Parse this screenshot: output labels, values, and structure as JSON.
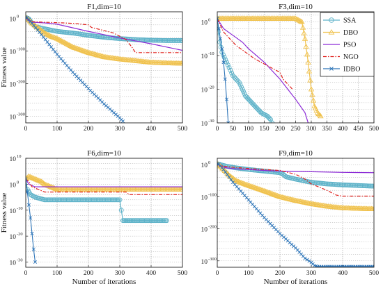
{
  "legend": {
    "items": [
      "SSA",
      "DBO",
      "PSO",
      "NGO",
      "IDBO"
    ]
  },
  "colors": {
    "SSA": "#5fb3c9",
    "DBO": "#f0c24e",
    "PSO": "#8c2ad6",
    "NGO": "#e0201c",
    "IDBO": "#2e75b8"
  },
  "chart_data": [
    {
      "type": "line",
      "title": "F1,dim=10",
      "ylabel": "Fitness value",
      "xlabel": "",
      "x_ticks": [
        "0",
        "100",
        "200",
        "300",
        "400",
        "500"
      ],
      "xlim": [
        0,
        500
      ],
      "log_ylim": [
        -320,
        20
      ],
      "y_ticks": [
        {
          "base": "10",
          "exp": "0",
          "value": 0
        },
        {
          "base": "10",
          "exp": "-100",
          "value": -100
        },
        {
          "base": "10",
          "exp": "-200",
          "value": -200
        },
        {
          "base": "10",
          "exp": "-300",
          "value": -300
        }
      ],
      "series": [
        {
          "name": "SSA",
          "x": [
            0,
            10,
            20,
            30,
            50,
            75,
            100,
            150,
            200,
            250,
            300,
            350,
            400,
            450,
            500
          ],
          "log_y": [
            3,
            -2,
            -15,
            -25,
            -30,
            -35,
            -40,
            -45,
            -52,
            -58,
            -62,
            -65,
            -67,
            -68,
            -68
          ]
        },
        {
          "name": "DBO",
          "x": [
            0,
            10,
            20,
            40,
            60,
            80,
            100,
            150,
            200,
            250,
            300,
            350,
            400,
            450,
            500
          ],
          "log_y": [
            3,
            -5,
            -15,
            -30,
            -45,
            -55,
            -62,
            -88,
            -105,
            -118,
            -125,
            -130,
            -135,
            -137,
            -138
          ]
        },
        {
          "name": "PSO",
          "x": [
            0,
            10,
            20,
            40,
            60,
            100,
            200,
            300,
            400,
            500
          ],
          "log_y": [
            3,
            -8,
            -12,
            -13,
            -14,
            -18,
            -40,
            -60,
            -78,
            -98
          ]
        },
        {
          "name": "NGO",
          "x": [
            0,
            10,
            20,
            60,
            120,
            160,
            200,
            210,
            240,
            280,
            300,
            320,
            340,
            350,
            400,
            500
          ],
          "log_y": [
            3,
            -5,
            -10,
            -12,
            -14,
            -16,
            -20,
            -28,
            -35,
            -45,
            -55,
            -65,
            -90,
            -105,
            -105,
            -105
          ]
        },
        {
          "name": "IDBO",
          "x": [
            0,
            5,
            20,
            50,
            100,
            150,
            200,
            250,
            300,
            310
          ],
          "log_y": [
            3,
            2,
            -15,
            -50,
            -110,
            -165,
            -215,
            -262,
            -305,
            -315
          ]
        }
      ]
    },
    {
      "type": "line",
      "title": "F3,dim=10",
      "ylabel": "",
      "xlabel": "",
      "x_ticks": [
        "0",
        "50",
        "100",
        "150",
        "200",
        "250",
        "300",
        "350",
        "400",
        "450",
        "500"
      ],
      "xlim": [
        0,
        500
      ],
      "log_ylim": [
        -30,
        3
      ],
      "y_ticks": [
        {
          "base": "10",
          "exp": "0",
          "value": 0
        },
        {
          "base": "10",
          "exp": "-10",
          "value": -10
        },
        {
          "base": "10",
          "exp": "-20",
          "value": -20
        },
        {
          "base": "10",
          "exp": "-30",
          "value": -30
        }
      ],
      "series": [
        {
          "name": "SSA",
          "x": [
            0,
            3,
            8,
            15,
            30,
            50,
            70,
            80,
            90,
            100,
            110,
            120,
            130,
            140,
            160,
            170,
            175
          ],
          "log_y": [
            1,
            -3,
            -6,
            -9,
            -12,
            -16,
            -18,
            -20,
            -22,
            -23,
            -24,
            -25,
            -26,
            -27,
            -28,
            -29,
            -30
          ]
        },
        {
          "name": "DBO",
          "x": [
            0,
            5,
            100,
            200,
            250,
            270,
            280,
            290,
            300,
            310,
            320,
            330
          ],
          "log_y": [
            1,
            1,
            1,
            1,
            1,
            0,
            -5,
            -12,
            -20,
            -25,
            -27,
            -28
          ]
        },
        {
          "name": "PSO",
          "x": [
            0,
            20,
            50,
            80,
            100,
            150,
            200,
            250,
            280,
            290
          ],
          "log_y": [
            1,
            -2,
            -4,
            -6,
            -8,
            -12,
            -17,
            -23,
            -27,
            -30
          ]
        },
        {
          "name": "NGO",
          "x": [
            0,
            10,
            20,
            40,
            60,
            90,
            120,
            160,
            180,
            200,
            210,
            220,
            230,
            240
          ],
          "log_y": [
            1,
            -1,
            -3,
            -5,
            -7,
            -9,
            -11,
            -13,
            -14,
            -15,
            -17,
            -18,
            -19,
            -20
          ]
        },
        {
          "name": "IDBO",
          "x": [
            0,
            5,
            10,
            15,
            20,
            25,
            30,
            35
          ],
          "log_y": [
            1,
            -2,
            -5,
            -8,
            -12,
            -17,
            -23,
            -30
          ]
        }
      ]
    },
    {
      "type": "line",
      "title": "F6,dim=10",
      "ylabel": "Fitness value",
      "xlabel": "Number of iterations",
      "x_ticks": [
        "0",
        "100",
        "200",
        "300",
        "400",
        "500"
      ],
      "xlim": [
        0,
        500
      ],
      "log_ylim": [
        -32,
        10
      ],
      "y_ticks": [
        {
          "base": "10",
          "exp": "10",
          "value": 10
        },
        {
          "base": "10",
          "exp": "0",
          "value": 0
        },
        {
          "base": "10",
          "exp": "-10",
          "value": -10
        },
        {
          "base": "10",
          "exp": "-20",
          "value": -20
        },
        {
          "base": "10",
          "exp": "-30",
          "value": -30
        }
      ],
      "series": [
        {
          "name": "SSA",
          "x": [
            0,
            5,
            15,
            30,
            60,
            100,
            200,
            300,
            305,
            310,
            320,
            350,
            400,
            450
          ],
          "log_y": [
            2,
            -2,
            -4,
            -5,
            -6,
            -6,
            -6,
            -6,
            -10,
            -14,
            -14,
            -14,
            -14,
            -14
          ]
        },
        {
          "name": "DBO",
          "x": [
            0,
            10,
            30,
            50,
            60,
            80,
            100,
            200,
            300,
            400,
            500
          ],
          "log_y": [
            2,
            3,
            2,
            1,
            0,
            -1,
            -2,
            -2,
            -2,
            -2,
            -2
          ]
        },
        {
          "name": "PSO",
          "x": [
            0,
            10,
            30,
            500
          ],
          "log_y": [
            2,
            0,
            -1,
            -1
          ]
        },
        {
          "name": "NGO",
          "x": [
            0,
            10,
            20,
            40,
            60,
            100,
            200,
            300,
            320,
            330,
            400,
            500
          ],
          "log_y": [
            2,
            1,
            -1,
            -2,
            -3,
            -3,
            -3,
            -3,
            -3,
            -4,
            -4,
            -4
          ]
        },
        {
          "name": "IDBO",
          "x": [
            0,
            5,
            10,
            15,
            20,
            25,
            30
          ],
          "log_y": [
            2,
            -3,
            -8,
            -13,
            -19,
            -25,
            -30
          ]
        }
      ]
    },
    {
      "type": "line",
      "title": "F9,dim=10",
      "ylabel": "",
      "xlabel": "Number of iterations",
      "x_ticks": [
        "0",
        "100",
        "200",
        "300",
        "400",
        "500"
      ],
      "xlim": [
        0,
        500
      ],
      "log_ylim": [
        -320,
        20
      ],
      "y_ticks": [
        {
          "base": "10",
          "exp": "0",
          "value": 0
        },
        {
          "base": "10",
          "exp": "-100",
          "value": -100
        },
        {
          "base": "10",
          "exp": "-200",
          "value": -200
        },
        {
          "base": "10",
          "exp": "-300",
          "value": -300
        }
      ],
      "series": [
        {
          "name": "SSA",
          "x": [
            0,
            10,
            30,
            60,
            100,
            150,
            200,
            210,
            220,
            250,
            300,
            350,
            400,
            450,
            500
          ],
          "log_y": [
            3,
            0,
            -5,
            -10,
            -15,
            -20,
            -25,
            -30,
            -38,
            -45,
            -55,
            -60,
            -63,
            -65,
            -67
          ]
        },
        {
          "name": "DBO",
          "x": [
            0,
            10,
            20,
            40,
            60,
            80,
            100,
            150,
            200,
            250,
            300,
            350,
            400,
            450,
            500
          ],
          "log_y": [
            3,
            -5,
            -15,
            -35,
            -50,
            -58,
            -65,
            -82,
            -100,
            -112,
            -122,
            -130,
            -135,
            -137,
            -138
          ]
        },
        {
          "name": "PSO",
          "x": [
            0,
            10,
            30,
            60,
            100,
            150,
            200,
            300,
            400,
            500
          ],
          "log_y": [
            3,
            -5,
            -10,
            -13,
            -15,
            -18,
            -20,
            -22,
            -24,
            -25
          ]
        },
        {
          "name": "NGO",
          "x": [
            0,
            10,
            20,
            50,
            100,
            150,
            200,
            250,
            280,
            300,
            350,
            380,
            400,
            500
          ],
          "log_y": [
            3,
            -2,
            -5,
            -8,
            -12,
            -15,
            -18,
            -30,
            -45,
            -60,
            -80,
            -95,
            -98,
            -98
          ]
        },
        {
          "name": "IDBO",
          "x": [
            0,
            5,
            20,
            50,
            100,
            150,
            200,
            250,
            280,
            300,
            310,
            320,
            400,
            500
          ],
          "log_y": [
            3,
            2,
            -15,
            -55,
            -110,
            -165,
            -215,
            -260,
            -292,
            -305,
            -315,
            -318,
            -318,
            -318
          ]
        }
      ]
    }
  ]
}
